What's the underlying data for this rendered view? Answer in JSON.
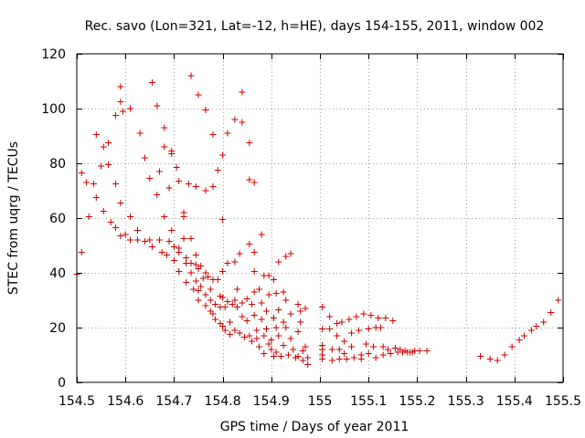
{
  "chart_data": {
    "type": "scatter",
    "title": "Rec. savo (Lon=321, Lat=-12, h=HE), days 154-155, 2011, window 002",
    "xlabel": "GPS time / Days of year 2011",
    "ylabel": "STEC from uqrg / TECUs",
    "xlim": [
      154.5,
      155.5
    ],
    "ylim": [
      0,
      120
    ],
    "xticks": [
      154.5,
      154.6,
      154.7,
      154.8,
      154.9,
      155.0,
      155.1,
      155.2,
      155.3,
      155.4,
      155.5
    ],
    "xtick_labels": [
      "154.5",
      "154.6",
      "154.7",
      "154.8",
      "154.9",
      "155",
      "155.1",
      "155.2",
      "155.3",
      "155.4",
      "155.5"
    ],
    "yticks": [
      0,
      20,
      40,
      60,
      80,
      100,
      120
    ],
    "ytick_labels": [
      "0",
      "20",
      "40",
      "60",
      "80",
      "100",
      "120"
    ],
    "grid": true,
    "marker": "+",
    "color": "#cc0000",
    "points": [
      [
        154.5,
        39.5
      ],
      [
        154.51,
        47.5
      ],
      [
        154.51,
        76.5
      ],
      [
        154.52,
        73
      ],
      [
        154.525,
        60.5
      ],
      [
        154.535,
        72.5
      ],
      [
        154.54,
        67.5
      ],
      [
        154.54,
        90.5
      ],
      [
        154.55,
        79
      ],
      [
        154.555,
        86
      ],
      [
        154.555,
        62.5
      ],
      [
        154.565,
        87.5
      ],
      [
        154.565,
        79.5
      ],
      [
        154.57,
        58.5
      ],
      [
        154.58,
        72.5
      ],
      [
        154.58,
        97.5
      ],
      [
        154.58,
        56.5
      ],
      [
        154.59,
        108
      ],
      [
        154.59,
        102.5
      ],
      [
        154.595,
        99
      ],
      [
        154.59,
        65.5
      ],
      [
        154.59,
        53.5
      ],
      [
        154.6,
        54
      ],
      [
        154.61,
        100
      ],
      [
        154.61,
        60.5
      ],
      [
        154.61,
        52
      ],
      [
        154.625,
        55.5
      ],
      [
        154.625,
        52
      ],
      [
        154.63,
        91
      ],
      [
        154.64,
        82
      ],
      [
        154.64,
        51.5
      ],
      [
        154.655,
        109.5
      ],
      [
        154.65,
        74.5
      ],
      [
        154.65,
        52
      ],
      [
        154.655,
        49.5
      ],
      [
        154.665,
        101
      ],
      [
        154.67,
        77
      ],
      [
        154.665,
        68.5
      ],
      [
        154.67,
        52
      ],
      [
        154.675,
        47.5
      ],
      [
        154.68,
        93
      ],
      [
        154.68,
        86
      ],
      [
        154.68,
        60.5
      ],
      [
        154.685,
        46.5
      ],
      [
        154.69,
        51.5
      ],
      [
        154.695,
        83.5
      ],
      [
        154.695,
        84.5
      ],
      [
        154.69,
        71
      ],
      [
        154.695,
        55.5
      ],
      [
        154.7,
        49.5
      ],
      [
        154.7,
        44.5
      ],
      [
        154.705,
        78.5
      ],
      [
        154.71,
        73.5
      ],
      [
        154.71,
        47.5
      ],
      [
        154.71,
        49
      ],
      [
        154.71,
        40.5
      ],
      [
        154.72,
        62
      ],
      [
        154.72,
        60.5
      ],
      [
        154.72,
        52.5
      ],
      [
        154.725,
        45.5
      ],
      [
        154.725,
        43.5
      ],
      [
        154.725,
        36.5
      ],
      [
        154.73,
        72.5
      ],
      [
        154.735,
        112
      ],
      [
        154.735,
        52.5
      ],
      [
        154.735,
        43.5
      ],
      [
        154.735,
        40
      ],
      [
        154.74,
        34
      ],
      [
        154.745,
        71.5
      ],
      [
        154.745,
        46.5
      ],
      [
        154.745,
        43
      ],
      [
        154.745,
        37
      ],
      [
        154.75,
        105
      ],
      [
        154.75,
        41.5
      ],
      [
        154.75,
        33.5
      ],
      [
        154.75,
        30
      ],
      [
        154.755,
        42.5
      ],
      [
        154.755,
        35
      ],
      [
        154.76,
        38
      ],
      [
        154.765,
        99.5
      ],
      [
        154.765,
        70
      ],
      [
        154.765,
        40
      ],
      [
        154.765,
        32
      ],
      [
        154.765,
        28
      ],
      [
        154.77,
        38.5
      ],
      [
        154.775,
        34
      ],
      [
        154.775,
        30
      ],
      [
        154.775,
        26
      ],
      [
        154.78,
        90.5
      ],
      [
        154.78,
        71.5
      ],
      [
        154.78,
        37.5
      ],
      [
        154.78,
        25
      ],
      [
        154.785,
        28.5
      ],
      [
        154.785,
        23
      ],
      [
        154.79,
        77.5
      ],
      [
        154.79,
        37.5
      ],
      [
        154.795,
        31.5
      ],
      [
        154.795,
        27.5
      ],
      [
        154.795,
        21.5
      ],
      [
        154.8,
        83
      ],
      [
        154.8,
        59.5
      ],
      [
        154.8,
        40.5
      ],
      [
        154.8,
        31
      ],
      [
        154.8,
        20.5
      ],
      [
        154.805,
        27.5
      ],
      [
        154.805,
        19
      ],
      [
        154.81,
        91
      ],
      [
        154.81,
        43.5
      ],
      [
        154.81,
        29.5
      ],
      [
        154.815,
        22
      ],
      [
        154.815,
        17.5
      ],
      [
        154.82,
        28.5
      ],
      [
        154.825,
        96
      ],
      [
        154.825,
        44
      ],
      [
        154.825,
        30
      ],
      [
        154.825,
        19
      ],
      [
        154.83,
        34
      ],
      [
        154.83,
        27.5
      ],
      [
        154.835,
        47
      ],
      [
        154.835,
        18
      ],
      [
        154.84,
        106
      ],
      [
        154.84,
        95
      ],
      [
        154.84,
        29
      ],
      [
        154.84,
        24
      ],
      [
        154.845,
        16.5
      ],
      [
        154.85,
        30.5
      ],
      [
        154.85,
        22.5
      ],
      [
        154.855,
        87.5
      ],
      [
        154.855,
        74
      ],
      [
        154.855,
        50.5
      ],
      [
        154.855,
        17
      ],
      [
        154.86,
        28.5
      ],
      [
        154.86,
        15
      ],
      [
        154.865,
        73
      ],
      [
        154.865,
        40.5
      ],
      [
        154.865,
        47.5
      ],
      [
        154.865,
        33
      ],
      [
        154.865,
        24.5
      ],
      [
        154.87,
        19
      ],
      [
        154.87,
        16
      ],
      [
        154.875,
        13
      ],
      [
        154.875,
        34
      ],
      [
        154.88,
        54
      ],
      [
        154.88,
        23
      ],
      [
        154.88,
        29
      ],
      [
        154.885,
        39
      ],
      [
        154.885,
        17
      ],
      [
        154.885,
        10.5
      ],
      [
        154.89,
        26
      ],
      [
        154.89,
        19.5
      ],
      [
        154.895,
        39
      ],
      [
        154.895,
        32
      ],
      [
        154.895,
        14
      ],
      [
        154.9,
        15.5
      ],
      [
        154.9,
        12
      ],
      [
        154.905,
        37.5
      ],
      [
        154.905,
        23.5
      ],
      [
        154.905,
        9.5
      ],
      [
        154.91,
        32.5
      ],
      [
        154.91,
        20
      ],
      [
        154.91,
        11
      ],
      [
        154.915,
        44
      ],
      [
        154.915,
        26.5
      ],
      [
        154.915,
        17
      ],
      [
        154.92,
        9.5
      ],
      [
        154.925,
        33
      ],
      [
        154.925,
        22
      ],
      [
        154.925,
        13.5
      ],
      [
        154.93,
        46
      ],
      [
        154.93,
        30
      ],
      [
        154.93,
        20
      ],
      [
        154.935,
        10
      ],
      [
        154.94,
        47
      ],
      [
        154.94,
        25
      ],
      [
        154.94,
        16
      ],
      [
        154.945,
        12
      ],
      [
        154.95,
        9
      ],
      [
        154.955,
        18.5
      ],
      [
        154.955,
        28.5
      ],
      [
        154.955,
        9.5
      ],
      [
        154.96,
        26
      ],
      [
        154.96,
        22
      ],
      [
        154.965,
        11.5
      ],
      [
        154.965,
        8
      ],
      [
        154.97,
        13
      ],
      [
        154.97,
        27
      ],
      [
        154.975,
        6.5
      ],
      [
        154.975,
        9
      ],
      [
        155.005,
        27.5
      ],
      [
        155.005,
        19.5
      ],
      [
        155.005,
        13.5
      ],
      [
        155.005,
        12
      ],
      [
        155.005,
        10
      ],
      [
        155.005,
        8.5
      ],
      [
        155.02,
        24
      ],
      [
        155.02,
        19.5
      ],
      [
        155.025,
        12
      ],
      [
        155.025,
        8
      ],
      [
        155.035,
        21.5
      ],
      [
        155.035,
        17
      ],
      [
        155.04,
        12
      ],
      [
        155.04,
        8.5
      ],
      [
        155.045,
        22
      ],
      [
        155.05,
        15
      ],
      [
        155.05,
        10.5
      ],
      [
        155.055,
        8.5
      ],
      [
        155.06,
        23
      ],
      [
        155.065,
        18
      ],
      [
        155.065,
        13
      ],
      [
        155.07,
        9
      ],
      [
        155.075,
        24
      ],
      [
        155.08,
        19
      ],
      [
        155.085,
        10
      ],
      [
        155.085,
        8.5
      ],
      [
        155.09,
        25
      ],
      [
        155.095,
        14
      ],
      [
        155.1,
        19.5
      ],
      [
        155.1,
        10.5
      ],
      [
        155.105,
        24.5
      ],
      [
        155.11,
        13
      ],
      [
        155.115,
        20
      ],
      [
        155.115,
        9
      ],
      [
        155.12,
        23.5
      ],
      [
        155.125,
        20
      ],
      [
        155.13,
        13
      ],
      [
        155.13,
        10
      ],
      [
        155.135,
        23.5
      ],
      [
        155.14,
        12
      ],
      [
        155.145,
        10.5
      ],
      [
        155.15,
        22.5
      ],
      [
        155.155,
        12.5
      ],
      [
        155.16,
        11
      ],
      [
        155.165,
        12
      ],
      [
        155.17,
        11
      ],
      [
        155.175,
        11.5
      ],
      [
        155.18,
        11
      ],
      [
        155.185,
        11
      ],
      [
        155.19,
        11
      ],
      [
        155.195,
        11.5
      ],
      [
        155.205,
        11.5
      ],
      [
        155.22,
        11.5
      ],
      [
        155.33,
        9.5
      ],
      [
        155.35,
        8.5
      ],
      [
        155.365,
        8
      ],
      [
        155.38,
        10
      ],
      [
        155.395,
        13
      ],
      [
        155.41,
        15.5
      ],
      [
        155.42,
        17
      ],
      [
        155.435,
        19
      ],
      [
        155.445,
        20.5
      ],
      [
        155.46,
        22
      ],
      [
        155.475,
        25.5
      ],
      [
        155.49,
        30
      ]
    ]
  }
}
